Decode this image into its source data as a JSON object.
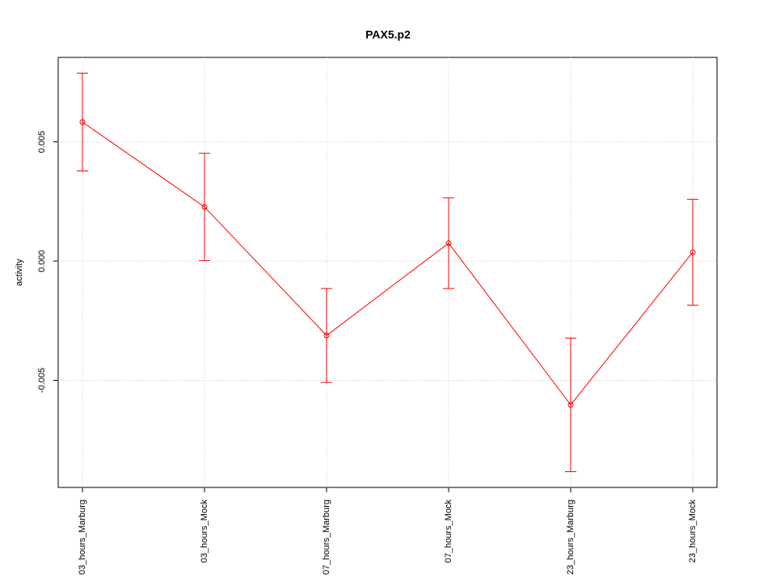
{
  "chart_data": {
    "type": "line",
    "title": "PAX5.p2",
    "y_label": "activity",
    "categories": [
      "03_hours_Marburg",
      "03_hours_Mock",
      "07_hours_Marburg",
      "07_hours_Mock",
      "23_hours_Marburg",
      "23_hours_Mock"
    ],
    "series": [
      {
        "name": "PAX5.p2",
        "color": "#ff0000",
        "values": [
          0.00583,
          0.00227,
          -0.00312,
          0.00075,
          -0.00603,
          0.00037
        ],
        "errors": [
          0.00205,
          0.00225,
          0.00197,
          0.0019,
          0.0028,
          0.00222
        ]
      }
    ],
    "ylim": [
      -0.009492,
      0.008542
    ],
    "yticks": [
      -0.005,
      {
        "value": 0,
        "label": "0.000"
      },
      0.005
    ],
    "grid": true
  }
}
